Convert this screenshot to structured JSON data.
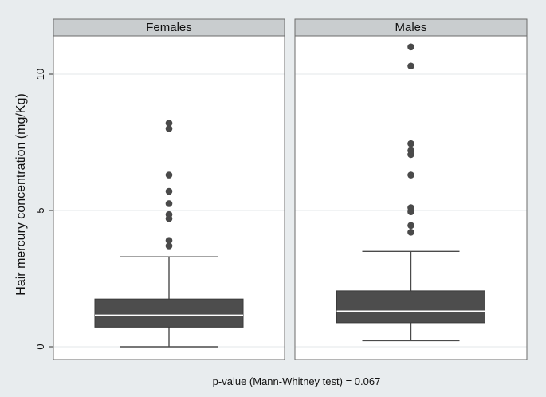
{
  "chart_data": {
    "type": "box",
    "ylabel": "Hair mercury concentration (mg/Kg)",
    "ylim": [
      0,
      11.5
    ],
    "yticks": [
      0,
      5,
      10
    ],
    "grid": true,
    "note": "p-value (Mann-Whitney test) = 0.067",
    "panels": [
      {
        "label": "Females",
        "whisker_low": 0.0,
        "q1": 0.72,
        "median": 1.15,
        "q3": 1.75,
        "whisker_high": 3.3,
        "outliers": [
          3.7,
          3.9,
          4.7,
          4.85,
          5.25,
          5.7,
          6.3,
          8.0,
          8.2
        ]
      },
      {
        "label": "Males",
        "whisker_low": 0.22,
        "q1": 0.88,
        "median": 1.3,
        "q3": 2.05,
        "whisker_high": 3.5,
        "outliers": [
          4.2,
          4.45,
          4.95,
          5.1,
          6.3,
          7.05,
          7.2,
          7.45,
          10.3,
          11.0
        ]
      }
    ]
  }
}
